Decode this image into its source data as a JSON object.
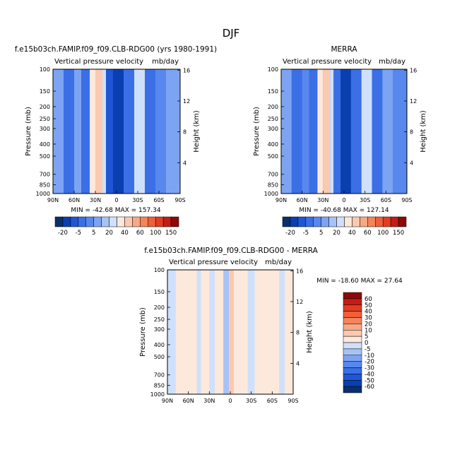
{
  "page_title": "DJF",
  "panels": [
    {
      "id": "model",
      "title": "f.e15b03ch.FAMIP.f09_f09.CLB-RDG00 (yrs 1980-1991)",
      "variable": "Vertical pressure velocity",
      "units": "mb/day",
      "ylabel": "Pressure (mb)",
      "y2label": "Height (km)",
      "stats": "MIN = -42.68   MAX = 157.34"
    },
    {
      "id": "obs",
      "title": "MERRA",
      "variable": "Vertical pressure velocity",
      "units": "mb/day",
      "ylabel": "Pressure (mb)",
      "y2label": "Height (km)",
      "stats": "MIN = -40.68   MAX = 127.14"
    },
    {
      "id": "diff",
      "title": "f.e15b03ch.FAMIP.f09_f09.CLB-RDG00 - MERRA",
      "variable": "Vertical pressure velocity",
      "units": "mb/day",
      "ylabel": "Pressure (mb)",
      "y2label": "Height (km)",
      "stats": "MIN = -18.60   MAX =  27.64"
    }
  ],
  "colorbar_top": {
    "labels": [
      "-20",
      "-5",
      "5",
      "20",
      "40",
      "60",
      "100",
      "150"
    ],
    "colors": [
      "#08306b",
      "#0a3fb0",
      "#1f56d6",
      "#3a6fe6",
      "#5888ee",
      "#7da4f3",
      "#a6c3f8",
      "#cfe0fb",
      "#fde8dc",
      "#fbc9b0",
      "#f8a884",
      "#f4845c",
      "#ee5f3a",
      "#e23d22",
      "#c41d14",
      "#8e0a0a"
    ]
  },
  "colorbar_diff": {
    "labels": [
      "60",
      "50",
      "40",
      "30",
      "20",
      "10",
      "5",
      "0",
      "-5",
      "-10",
      "-20",
      "-30",
      "-40",
      "-50",
      "-60"
    ],
    "colors": [
      "#8e0a0a",
      "#c41d14",
      "#e23d22",
      "#ee5f3a",
      "#f4845c",
      "#f8a884",
      "#fbc9b0",
      "#fde8dc",
      "#cfe0fb",
      "#a6c3f8",
      "#7da4f3",
      "#5888ee",
      "#3a6fe6",
      "#1f56d6",
      "#0a3fb0",
      "#08306b"
    ]
  },
  "chart_data": [
    {
      "type": "heatmap",
      "title": "f.e15b03ch.FAMIP.f09_f09.CLB-RDG00 (yrs 1980-1991)",
      "ylabel": "Pressure (mb)",
      "y2label": "Height (km)",
      "x_ticks": [
        "90N",
        "60N",
        "30N",
        "0",
        "30S",
        "60S",
        "90S"
      ],
      "y_ticks": [
        100,
        150,
        200,
        250,
        300,
        400,
        500,
        700,
        850,
        1000
      ],
      "y2_ticks": [
        4,
        8,
        12,
        16
      ],
      "ylim": [
        1000,
        100
      ],
      "y_scale": "log",
      "x_range": [
        "90N",
        "90S"
      ],
      "min": -42.68,
      "max": 157.34,
      "bands": [
        {
          "lat_from": 90,
          "lat_to": 75,
          "value": -5
        },
        {
          "lat_from": 75,
          "lat_to": 60,
          "value": -20
        },
        {
          "lat_from": 60,
          "lat_to": 50,
          "value": -5
        },
        {
          "lat_from": 50,
          "lat_to": 38,
          "value": -20
        },
        {
          "lat_from": 38,
          "lat_to": 30,
          "value": 10
        },
        {
          "lat_from": 30,
          "lat_to": 20,
          "value": 20
        },
        {
          "lat_from": 20,
          "lat_to": 15,
          "value": 5
        },
        {
          "lat_from": 15,
          "lat_to": 5,
          "value": -30
        },
        {
          "lat_from": 5,
          "lat_to": -10,
          "value": -40
        },
        {
          "lat_from": -10,
          "lat_to": -25,
          "value": -20
        },
        {
          "lat_from": -25,
          "lat_to": -40,
          "value": 5
        },
        {
          "lat_from": -40,
          "lat_to": -55,
          "value": -20
        },
        {
          "lat_from": -55,
          "lat_to": -70,
          "value": -10
        },
        {
          "lat_from": -70,
          "lat_to": -90,
          "value": -5
        }
      ]
    },
    {
      "type": "heatmap",
      "title": "MERRA",
      "ylabel": "Pressure (mb)",
      "y2label": "Height (km)",
      "x_ticks": [
        "90N",
        "60N",
        "30N",
        "0",
        "30S",
        "60S",
        "90S"
      ],
      "y_ticks": [
        100,
        150,
        200,
        250,
        300,
        400,
        500,
        700,
        850,
        1000
      ],
      "y2_ticks": [
        4,
        8,
        12,
        16
      ],
      "ylim": [
        1000,
        100
      ],
      "y_scale": "log",
      "x_range": [
        "90N",
        "90S"
      ],
      "min": -40.68,
      "max": 127.14,
      "bands": [
        {
          "lat_from": 90,
          "lat_to": 75,
          "value": -5
        },
        {
          "lat_from": 75,
          "lat_to": 60,
          "value": -20
        },
        {
          "lat_from": 60,
          "lat_to": 50,
          "value": -10
        },
        {
          "lat_from": 50,
          "lat_to": 38,
          "value": -20
        },
        {
          "lat_from": 38,
          "lat_to": 30,
          "value": 10
        },
        {
          "lat_from": 30,
          "lat_to": 20,
          "value": 20
        },
        {
          "lat_from": 20,
          "lat_to": 15,
          "value": 5
        },
        {
          "lat_from": 15,
          "lat_to": 5,
          "value": -20
        },
        {
          "lat_from": 5,
          "lat_to": -10,
          "value": -40
        },
        {
          "lat_from": -10,
          "lat_to": -25,
          "value": -20
        },
        {
          "lat_from": -25,
          "lat_to": -40,
          "value": 5
        },
        {
          "lat_from": -40,
          "lat_to": -55,
          "value": -20
        },
        {
          "lat_from": -55,
          "lat_to": -70,
          "value": -5
        },
        {
          "lat_from": -70,
          "lat_to": -90,
          "value": -10
        }
      ]
    },
    {
      "type": "heatmap",
      "title": "f.e15b03ch.FAMIP.f09_f09.CLB-RDG00 - MERRA",
      "ylabel": "Pressure (mb)",
      "y2label": "Height (km)",
      "x_ticks": [
        "90N",
        "60N",
        "30N",
        "0",
        "30S",
        "60S",
        "90S"
      ],
      "y_ticks": [
        100,
        150,
        200,
        250,
        300,
        400,
        500,
        700,
        850,
        1000
      ],
      "y2_ticks": [
        4,
        8,
        12,
        16
      ],
      "ylim": [
        1000,
        100
      ],
      "y_scale": "log",
      "x_range": [
        "90N",
        "90S"
      ],
      "min": -18.6,
      "max": 27.64,
      "bands": [
        {
          "lat_from": 90,
          "lat_to": 78,
          "value": -3
        },
        {
          "lat_from": 78,
          "lat_to": 48,
          "value": 2
        },
        {
          "lat_from": 48,
          "lat_to": 42,
          "value": -3
        },
        {
          "lat_from": 42,
          "lat_to": 30,
          "value": 2
        },
        {
          "lat_from": 30,
          "lat_to": 22,
          "value": -3
        },
        {
          "lat_from": 22,
          "lat_to": 10,
          "value": 2
        },
        {
          "lat_from": 10,
          "lat_to": 2,
          "value": -7
        },
        {
          "lat_from": 2,
          "lat_to": -5,
          "value": 7
        },
        {
          "lat_from": -5,
          "lat_to": -25,
          "value": 2
        },
        {
          "lat_from": -25,
          "lat_to": -35,
          "value": -3
        },
        {
          "lat_from": -35,
          "lat_to": -70,
          "value": 2
        },
        {
          "lat_from": -70,
          "lat_to": -78,
          "value": -3
        },
        {
          "lat_from": -78,
          "lat_to": -90,
          "value": 2
        }
      ]
    }
  ]
}
